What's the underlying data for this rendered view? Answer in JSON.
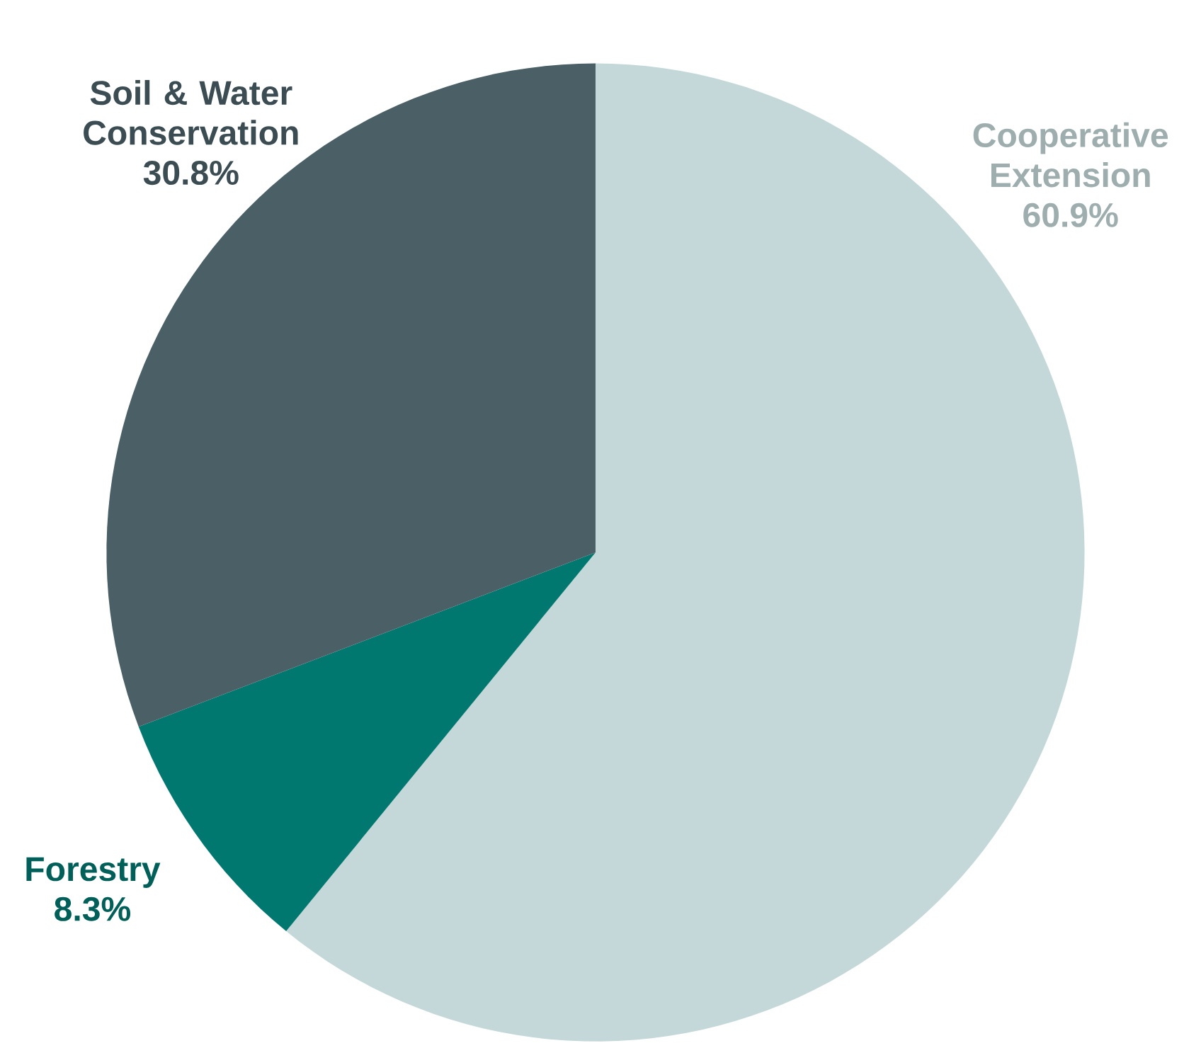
{
  "chart_data": {
    "type": "pie",
    "categories": [
      "Cooperative Extension",
      "Forestry",
      "Soil & Water Conservation"
    ],
    "values": [
      60.9,
      8.3,
      30.8
    ],
    "colors": [
      "#c5d8d9",
      "#00776f",
      "#4a5f66"
    ],
    "value_labels": [
      "60.9%",
      "8.3%",
      "30.8%"
    ]
  }
}
